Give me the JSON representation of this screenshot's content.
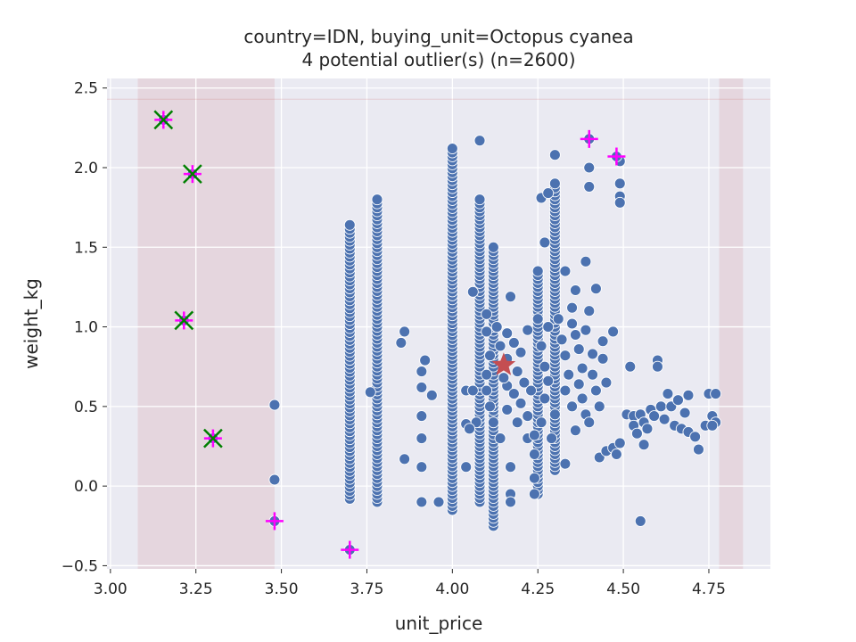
{
  "chart_data": {
    "type": "scatter",
    "title": "country=IDN, buying_unit=Octopus cyanea",
    "subtitle": "4 potential outlier(s) (n=2600)",
    "xlabel": "unit_price",
    "ylabel": "weight_kg",
    "xlim": [
      2.99,
      4.93
    ],
    "ylim": [
      -0.52,
      2.56
    ],
    "xticks": [
      "3.00",
      "3.25",
      "3.50",
      "3.75",
      "4.00",
      "4.25",
      "4.50",
      "4.75"
    ],
    "yticks": [
      "−0.5",
      "0.0",
      "0.5",
      "1.0",
      "1.5",
      "2.0",
      "2.5"
    ],
    "grid": true,
    "colors": {
      "background": "#eaeaf2",
      "points": "#4c72b0",
      "band": "#c44e52",
      "center": "#c44e52",
      "flag": "#ff00ff",
      "outlier": "#008000"
    },
    "bands": [
      {
        "x": [
          3.08,
          3.48
        ]
      },
      {
        "x": [
          4.78,
          4.85
        ]
      }
    ],
    "threshold_y": 2.43,
    "center": {
      "x": 4.15,
      "y": 0.76
    },
    "scatter_columns": [
      {
        "x": 3.7,
        "y": [
          -0.08,
          1.64
        ]
      },
      {
        "x": 3.78,
        "y": [
          -0.1,
          1.8
        ]
      },
      {
        "x": 4.0,
        "y": [
          -0.15,
          2.12
        ]
      },
      {
        "x": 4.08,
        "y": [
          -0.1,
          1.8
        ]
      },
      {
        "x": 4.12,
        "y": [
          -0.25,
          1.5
        ]
      },
      {
        "x": 4.25,
        "y": [
          -0.05,
          1.35
        ]
      },
      {
        "x": 4.3,
        "y": [
          0.1,
          1.9
        ]
      }
    ],
    "scatter_points": [
      {
        "x": 3.48,
        "y": 0.51
      },
      {
        "x": 3.48,
        "y": 0.04
      },
      {
        "x": 3.76,
        "y": 0.59
      },
      {
        "x": 3.85,
        "y": 0.9
      },
      {
        "x": 3.86,
        "y": 0.97
      },
      {
        "x": 3.86,
        "y": 0.17
      },
      {
        "x": 3.91,
        "y": 0.72
      },
      {
        "x": 3.91,
        "y": 0.62
      },
      {
        "x": 3.92,
        "y": 0.79
      },
      {
        "x": 3.91,
        "y": 0.44
      },
      {
        "x": 3.91,
        "y": 0.3
      },
      {
        "x": 3.91,
        "y": 0.12
      },
      {
        "x": 3.91,
        "y": -0.1
      },
      {
        "x": 3.94,
        "y": 0.57
      },
      {
        "x": 3.96,
        "y": -0.1
      },
      {
        "x": 4.04,
        "y": 0.6
      },
      {
        "x": 4.04,
        "y": 0.39
      },
      {
        "x": 4.04,
        "y": 0.12
      },
      {
        "x": 4.06,
        "y": 1.22
      },
      {
        "x": 4.06,
        "y": 0.6
      },
      {
        "x": 4.07,
        "y": 0.4
      },
      {
        "x": 4.05,
        "y": 0.36
      },
      {
        "x": 4.08,
        "y": 2.17
      },
      {
        "x": 4.1,
        "y": 1.08
      },
      {
        "x": 4.1,
        "y": 0.97
      },
      {
        "x": 4.16,
        "y": 0.63
      },
      {
        "x": 4.17,
        "y": 1.19
      },
      {
        "x": 4.17,
        "y": 0.12
      },
      {
        "x": 4.17,
        "y": -0.05
      },
      {
        "x": 4.17,
        "y": -0.1
      },
      {
        "x": 4.2,
        "y": 0.52
      },
      {
        "x": 4.22,
        "y": 0.3
      },
      {
        "x": 4.24,
        "y": 0.2
      },
      {
        "x": 4.24,
        "y": 0.05
      },
      {
        "x": 4.24,
        "y": -0.05
      },
      {
        "x": 4.27,
        "y": 1.53
      },
      {
        "x": 4.26,
        "y": 1.81
      },
      {
        "x": 4.28,
        "y": 1.84
      },
      {
        "x": 4.3,
        "y": 2.08
      },
      {
        "x": 4.33,
        "y": 1.35
      },
      {
        "x": 4.33,
        "y": 0.14
      },
      {
        "x": 4.35,
        "y": 1.12
      },
      {
        "x": 4.36,
        "y": 1.23
      },
      {
        "x": 4.36,
        "y": 0.95
      },
      {
        "x": 4.38,
        "y": 0.55
      },
      {
        "x": 4.39,
        "y": 1.41
      },
      {
        "x": 4.4,
        "y": 2.0
      },
      {
        "x": 4.4,
        "y": 1.88
      },
      {
        "x": 4.4,
        "y": 1.1
      },
      {
        "x": 4.41,
        "y": 0.83
      },
      {
        "x": 4.42,
        "y": 1.24
      },
      {
        "x": 4.43,
        "y": 0.18
      },
      {
        "x": 4.44,
        "y": 0.91
      },
      {
        "x": 4.45,
        "y": 0.22
      },
      {
        "x": 4.47,
        "y": 0.97
      },
      {
        "x": 4.47,
        "y": 0.24
      },
      {
        "x": 4.48,
        "y": 0.2
      },
      {
        "x": 4.49,
        "y": 2.04
      },
      {
        "x": 4.49,
        "y": 1.9
      },
      {
        "x": 4.49,
        "y": 1.82
      },
      {
        "x": 4.49,
        "y": 1.78
      },
      {
        "x": 4.49,
        "y": 0.27
      },
      {
        "x": 4.52,
        "y": 0.75
      },
      {
        "x": 4.51,
        "y": 0.45
      },
      {
        "x": 4.53,
        "y": 0.44
      },
      {
        "x": 4.53,
        "y": 0.38
      },
      {
        "x": 4.54,
        "y": 0.33
      },
      {
        "x": 4.55,
        "y": -0.22
      },
      {
        "x": 4.55,
        "y": 0.45
      },
      {
        "x": 4.56,
        "y": 0.26
      },
      {
        "x": 4.56,
        "y": 0.4
      },
      {
        "x": 4.57,
        "y": 0.36
      },
      {
        "x": 4.58,
        "y": 0.48
      },
      {
        "x": 4.59,
        "y": 0.44
      },
      {
        "x": 4.6,
        "y": 0.79
      },
      {
        "x": 4.6,
        "y": 0.75
      },
      {
        "x": 4.61,
        "y": 0.5
      },
      {
        "x": 4.62,
        "y": 0.42
      },
      {
        "x": 4.63,
        "y": 0.58
      },
      {
        "x": 4.64,
        "y": 0.5
      },
      {
        "x": 4.65,
        "y": 0.38
      },
      {
        "x": 4.66,
        "y": 0.54
      },
      {
        "x": 4.67,
        "y": 0.36
      },
      {
        "x": 4.68,
        "y": 0.46
      },
      {
        "x": 4.69,
        "y": 0.57
      },
      {
        "x": 4.69,
        "y": 0.34
      },
      {
        "x": 4.71,
        "y": 0.31
      },
      {
        "x": 4.72,
        "y": 0.23
      },
      {
        "x": 4.74,
        "y": 0.38
      },
      {
        "x": 4.75,
        "y": 0.58
      },
      {
        "x": 4.76,
        "y": 0.44
      },
      {
        "x": 4.77,
        "y": 0.4
      },
      {
        "x": 4.77,
        "y": 0.58
      },
      {
        "x": 4.76,
        "y": 0.38
      }
    ],
    "cluster_points": [
      {
        "x": 4.16,
        "y": 0.96
      },
      {
        "x": 4.18,
        "y": 0.9
      },
      {
        "x": 4.2,
        "y": 0.84
      },
      {
        "x": 4.22,
        "y": 0.98
      },
      {
        "x": 4.19,
        "y": 0.72
      },
      {
        "x": 4.21,
        "y": 0.65
      },
      {
        "x": 4.23,
        "y": 0.6
      },
      {
        "x": 4.18,
        "y": 0.58
      },
      {
        "x": 4.26,
        "y": 0.88
      },
      {
        "x": 4.27,
        "y": 0.75
      },
      {
        "x": 4.28,
        "y": 0.66
      },
      {
        "x": 4.27,
        "y": 0.55
      },
      {
        "x": 4.32,
        "y": 0.92
      },
      {
        "x": 4.33,
        "y": 0.82
      },
      {
        "x": 4.34,
        "y": 0.7
      },
      {
        "x": 4.33,
        "y": 0.6
      },
      {
        "x": 4.35,
        "y": 0.5
      },
      {
        "x": 4.37,
        "y": 0.86
      },
      {
        "x": 4.38,
        "y": 0.74
      },
      {
        "x": 4.37,
        "y": 0.64
      },
      {
        "x": 4.39,
        "y": 0.45
      },
      {
        "x": 4.41,
        "y": 0.7
      },
      {
        "x": 4.42,
        "y": 0.6
      },
      {
        "x": 4.4,
        "y": 0.4
      },
      {
        "x": 4.43,
        "y": 0.5
      },
      {
        "x": 4.44,
        "y": 0.8
      },
      {
        "x": 4.45,
        "y": 0.65
      },
      {
        "x": 4.13,
        "y": 1.0
      },
      {
        "x": 4.14,
        "y": 0.88
      },
      {
        "x": 4.16,
        "y": 0.8
      },
      {
        "x": 4.15,
        "y": 0.68
      },
      {
        "x": 4.11,
        "y": 0.82
      },
      {
        "x": 4.1,
        "y": 0.7
      },
      {
        "x": 4.1,
        "y": 0.6
      },
      {
        "x": 4.11,
        "y": 0.5
      },
      {
        "x": 4.12,
        "y": 0.4
      },
      {
        "x": 4.14,
        "y": 0.3
      },
      {
        "x": 4.16,
        "y": 0.48
      },
      {
        "x": 4.19,
        "y": 0.4
      },
      {
        "x": 4.22,
        "y": 0.44
      },
      {
        "x": 4.25,
        "y": 1.05
      },
      {
        "x": 4.28,
        "y": 1.0
      },
      {
        "x": 4.31,
        "y": 1.05
      },
      {
        "x": 4.35,
        "y": 1.02
      },
      {
        "x": 4.39,
        "y": 0.98
      },
      {
        "x": 4.3,
        "y": 0.45
      },
      {
        "x": 4.26,
        "y": 0.4
      },
      {
        "x": 4.36,
        "y": 0.35
      },
      {
        "x": 4.29,
        "y": 0.3
      },
      {
        "x": 4.24,
        "y": 0.32
      }
    ],
    "flagged_points": [
      {
        "x": 3.155,
        "y": 2.3,
        "outlier": true
      },
      {
        "x": 3.24,
        "y": 1.96,
        "outlier": true
      },
      {
        "x": 3.215,
        "y": 1.04,
        "outlier": true
      },
      {
        "x": 3.3,
        "y": 0.3,
        "outlier": true
      },
      {
        "x": 3.48,
        "y": -0.22,
        "outlier": false
      },
      {
        "x": 3.7,
        "y": -0.4,
        "outlier": false
      },
      {
        "x": 4.4,
        "y": 2.18,
        "outlier": false
      },
      {
        "x": 4.48,
        "y": 2.07,
        "outlier": false
      }
    ]
  }
}
